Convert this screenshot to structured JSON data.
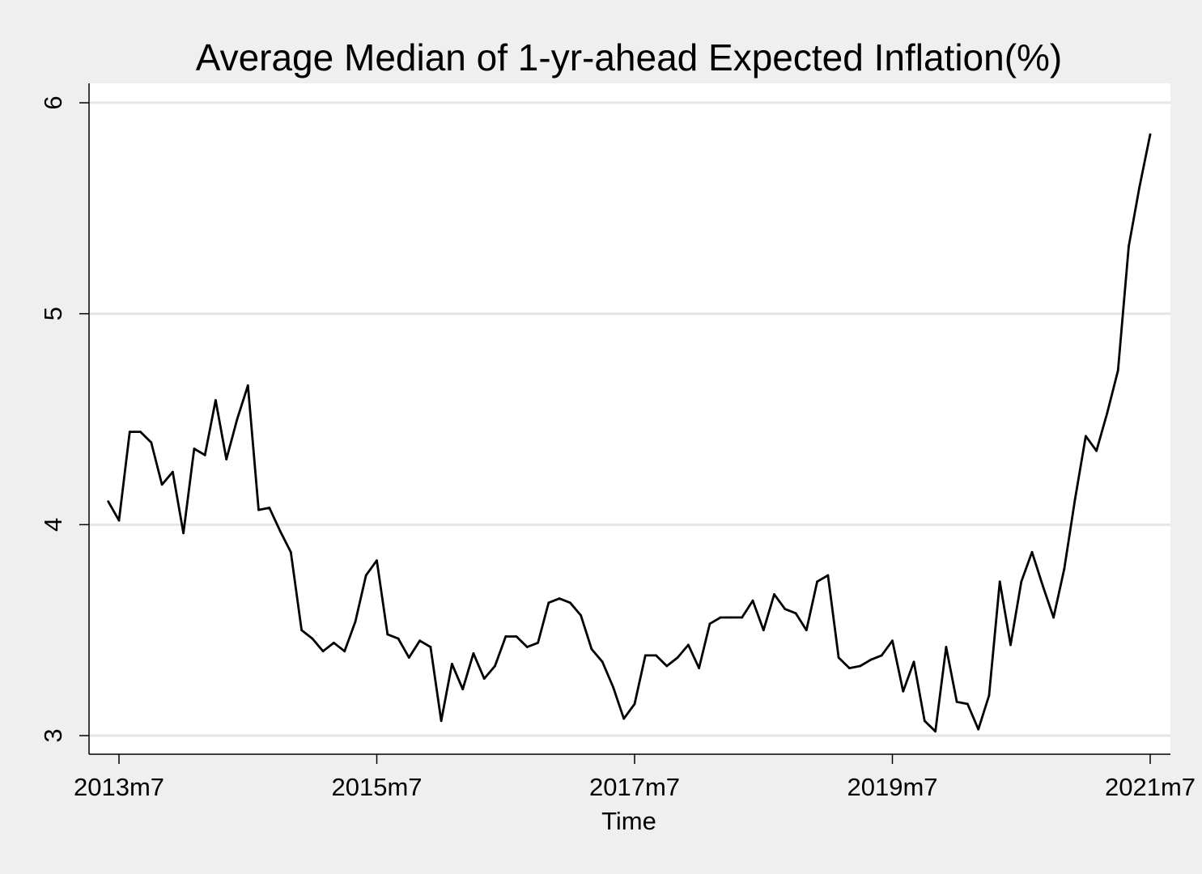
{
  "chart_data": {
    "type": "line",
    "title": "Average Median of 1-yr-ahead Expected Inflation(%)",
    "xlabel": "Time",
    "ylabel": "",
    "x_ticks": [
      {
        "t": 0,
        "label": "2013m7"
      },
      {
        "t": 24,
        "label": "2015m7"
      },
      {
        "t": 48,
        "label": "2017m7"
      },
      {
        "t": 72,
        "label": "2019m7"
      },
      {
        "t": 96,
        "label": "2021m7"
      }
    ],
    "y_ticks": [
      {
        "v": 3,
        "label": "3"
      },
      {
        "v": 4,
        "label": "4"
      },
      {
        "v": 5,
        "label": "5"
      },
      {
        "v": 6,
        "label": "6"
      }
    ],
    "xlim": [
      "2013m4",
      "2021m9"
    ],
    "ylim": [
      2.92,
      6.09
    ],
    "grid": "horizontal",
    "line_color": "#000000",
    "x": [
      "2013m6",
      "2013m7",
      "2013m8",
      "2013m9",
      "2013m10",
      "2013m11",
      "2013m12",
      "2014m1",
      "2014m2",
      "2014m3",
      "2014m4",
      "2014m5",
      "2014m6",
      "2014m7",
      "2014m8",
      "2014m9",
      "2014m10",
      "2014m11",
      "2014m12",
      "2015m1",
      "2015m2",
      "2015m3",
      "2015m4",
      "2015m5",
      "2015m6",
      "2015m7",
      "2015m8",
      "2015m9",
      "2015m10",
      "2015m11",
      "2015m12",
      "2016m1",
      "2016m2",
      "2016m3",
      "2016m4",
      "2016m5",
      "2016m6",
      "2016m7",
      "2016m8",
      "2016m9",
      "2016m10",
      "2016m11",
      "2016m12",
      "2017m1",
      "2017m2",
      "2017m3",
      "2017m4",
      "2017m5",
      "2017m6",
      "2017m7",
      "2017m8",
      "2017m9",
      "2017m10",
      "2017m11",
      "2017m12",
      "2018m1",
      "2018m2",
      "2018m3",
      "2018m4",
      "2018m5",
      "2018m6",
      "2018m7",
      "2018m8",
      "2018m9",
      "2018m10",
      "2018m11",
      "2018m12",
      "2019m1",
      "2019m2",
      "2019m3",
      "2019m4",
      "2019m5",
      "2019m6",
      "2019m7",
      "2019m8",
      "2019m9",
      "2019m10",
      "2019m11",
      "2019m12",
      "2020m1",
      "2020m2",
      "2020m3",
      "2020m4",
      "2020m5",
      "2020m6",
      "2020m7",
      "2020m8",
      "2020m9",
      "2020m10",
      "2020m11",
      "2020m12",
      "2021m1",
      "2021m2",
      "2021m3",
      "2021m4",
      "2021m5",
      "2021m6",
      "2021m7"
    ],
    "series": [
      {
        "values": [
          4.11,
          4.02,
          4.44,
          4.44,
          4.39,
          4.19,
          4.25,
          3.96,
          4.36,
          4.33,
          4.59,
          4.31,
          4.5,
          4.66,
          4.07,
          4.08,
          3.97,
          3.87,
          3.5,
          3.46,
          3.4,
          3.44,
          3.4,
          3.54,
          3.76,
          3.83,
          3.48,
          3.46,
          3.37,
          3.45,
          3.42,
          3.07,
          3.34,
          3.22,
          3.39,
          3.27,
          3.33,
          3.47,
          3.47,
          3.42,
          3.44,
          3.63,
          3.65,
          3.63,
          3.57,
          3.41,
          3.35,
          3.23,
          3.08,
          3.15,
          3.38,
          3.38,
          3.33,
          3.37,
          3.43,
          3.32,
          3.53,
          3.56,
          3.56,
          3.56,
          3.64,
          3.5,
          3.67,
          3.6,
          3.58,
          3.5,
          3.73,
          3.76,
          3.37,
          3.32,
          3.33,
          3.36,
          3.38,
          3.45,
          3.21,
          3.35,
          3.07,
          3.02,
          3.42,
          3.16,
          3.15,
          3.03,
          3.19,
          3.73,
          3.43,
          3.73,
          3.87,
          3.71,
          3.56,
          3.79,
          4.12,
          4.42,
          4.35,
          4.53,
          4.73,
          5.32,
          5.6,
          5.85
        ]
      }
    ]
  }
}
